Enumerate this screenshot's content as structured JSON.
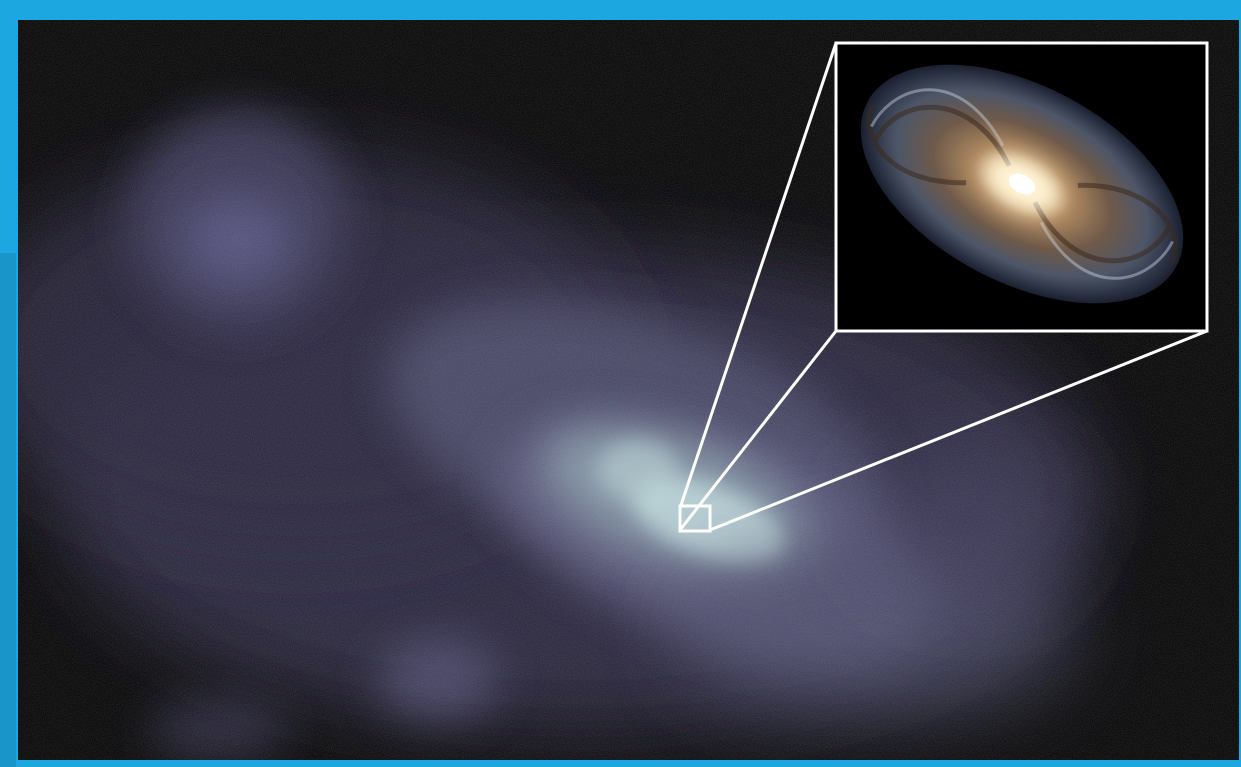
{
  "scene": {
    "subject": "cosmic-web-density-field",
    "inset_subject": "spiral-galaxy",
    "colors": {
      "border": "#1da7e0",
      "background": "#000000",
      "nebula": "#8a86b0",
      "core": "#c9e6e6",
      "outline": "#ffffff",
      "galaxy_core": "#fff4d8",
      "galaxy_arms": "#7a5a3c"
    }
  }
}
